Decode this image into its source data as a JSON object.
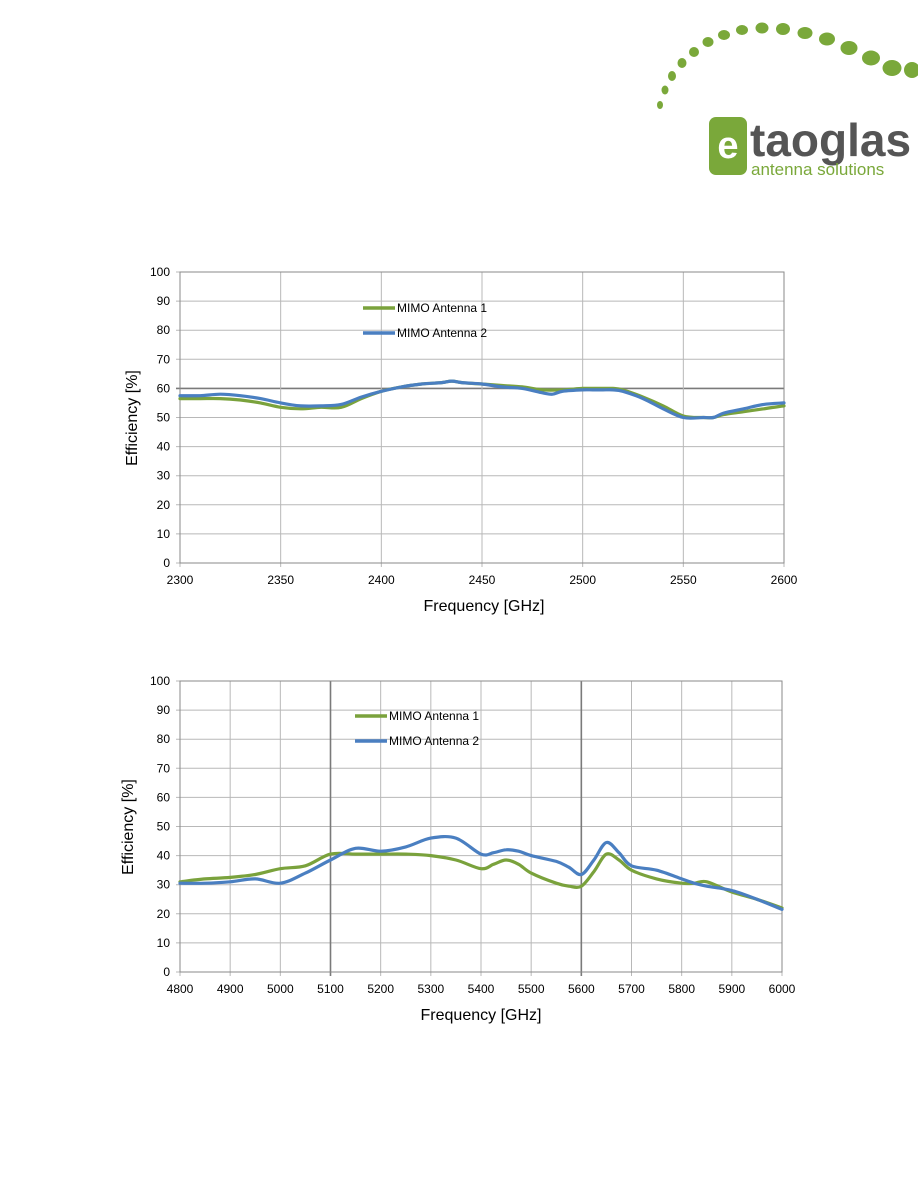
{
  "logo": {
    "word": "taoglas",
    "tagline": "antenna solutions",
    "brand_color": "#7aa83a",
    "text_color": "#555555"
  },
  "chart_data": [
    {
      "type": "line",
      "title": "",
      "xlabel": "Frequency [GHz]",
      "ylabel": "Efficiency [%]",
      "xlim": [
        2300,
        2600
      ],
      "ylim": [
        0,
        100
      ],
      "x_ticks": [
        2300,
        2350,
        2400,
        2450,
        2500,
        2550,
        2600
      ],
      "y_ticks": [
        0,
        10,
        20,
        30,
        40,
        50,
        60,
        70,
        80,
        90,
        100
      ],
      "grid": true,
      "emphasized_gridline_y": 60,
      "legend_position": "top-center",
      "series": [
        {
          "name": "MIMO Antenna 1",
          "color": "#7aa23c",
          "x": [
            2300,
            2310,
            2320,
            2330,
            2340,
            2350,
            2360,
            2370,
            2380,
            2390,
            2400,
            2410,
            2420,
            2430,
            2435,
            2440,
            2450,
            2460,
            2470,
            2480,
            2490,
            2500,
            2505,
            2510,
            2515,
            2520,
            2530,
            2540,
            2550,
            2560,
            2565,
            2570,
            2580,
            2590,
            2600
          ],
          "values": [
            56.5,
            56.5,
            56.5,
            56,
            55,
            53.5,
            53,
            53.5,
            53.5,
            56.5,
            59,
            60.5,
            61.5,
            62,
            62.5,
            62,
            61.5,
            61,
            60.5,
            59.5,
            59.5,
            60,
            60,
            60,
            60,
            59.5,
            57,
            54,
            50.5,
            50,
            50,
            51,
            52,
            53,
            54
          ]
        },
        {
          "name": "MIMO Antenna 2",
          "color": "#4a7fc1",
          "x": [
            2300,
            2310,
            2320,
            2330,
            2340,
            2350,
            2360,
            2370,
            2380,
            2390,
            2400,
            2410,
            2420,
            2430,
            2435,
            2440,
            2450,
            2460,
            2470,
            2480,
            2485,
            2490,
            2500,
            2505,
            2510,
            2515,
            2520,
            2530,
            2540,
            2550,
            2560,
            2565,
            2570,
            2580,
            2590,
            2600
          ],
          "values": [
            57.5,
            57.5,
            58,
            57.5,
            56.5,
            55,
            54,
            54,
            54.5,
            57,
            59,
            60.5,
            61.5,
            62,
            62.5,
            62,
            61.5,
            60.5,
            60,
            58.5,
            58,
            59,
            59.5,
            59.5,
            59.5,
            59.5,
            59,
            56.5,
            53,
            50,
            50,
            50,
            51.5,
            53,
            54.5,
            55
          ]
        }
      ]
    },
    {
      "type": "line",
      "title": "",
      "xlabel": "Frequency [GHz]",
      "ylabel": "Efficiency [%]",
      "xlim": [
        4800,
        6000
      ],
      "ylim": [
        0,
        100
      ],
      "x_ticks": [
        4800,
        4900,
        5000,
        5100,
        5200,
        5300,
        5400,
        5500,
        5600,
        5700,
        5800,
        5900,
        6000
      ],
      "y_ticks": [
        0,
        10,
        20,
        30,
        40,
        50,
        60,
        70,
        80,
        90,
        100
      ],
      "grid": true,
      "emphasized_gridline_x": [
        5100,
        5600
      ],
      "legend_position": "top-center",
      "series": [
        {
          "name": "MIMO Antenna 1",
          "color": "#7aa23c",
          "x": [
            4800,
            4850,
            4900,
            4950,
            5000,
            5050,
            5100,
            5150,
            5200,
            5250,
            5300,
            5350,
            5400,
            5425,
            5450,
            5475,
            5500,
            5550,
            5575,
            5600,
            5625,
            5650,
            5675,
            5700,
            5750,
            5800,
            5825,
            5850,
            5900,
            5950,
            6000
          ],
          "values": [
            31,
            32,
            32.5,
            33.5,
            35.5,
            36.5,
            40.5,
            40.5,
            40.5,
            40.5,
            40,
            38.5,
            35.5,
            37,
            38.5,
            37,
            34,
            30.5,
            29.5,
            29.5,
            34.5,
            40.5,
            38.5,
            35,
            32,
            30.5,
            30.5,
            31,
            27.5,
            25,
            22
          ]
        },
        {
          "name": "MIMO Antenna 2",
          "color": "#4a7fc1",
          "x": [
            4800,
            4850,
            4900,
            4950,
            5000,
            5050,
            5100,
            5150,
            5200,
            5250,
            5300,
            5350,
            5400,
            5425,
            5450,
            5475,
            5500,
            5550,
            5575,
            5600,
            5625,
            5650,
            5675,
            5700,
            5750,
            5800,
            5825,
            5850,
            5900,
            5950,
            6000
          ],
          "values": [
            30.5,
            30.5,
            31,
            32,
            30.5,
            34,
            38.5,
            42.5,
            41.5,
            43,
            46,
            46,
            40.5,
            41,
            42,
            41.5,
            40,
            38,
            36,
            33.5,
            38.5,
            44.5,
            41,
            36.5,
            35,
            32,
            30.5,
            29.5,
            28,
            25,
            21.5
          ]
        }
      ]
    }
  ]
}
